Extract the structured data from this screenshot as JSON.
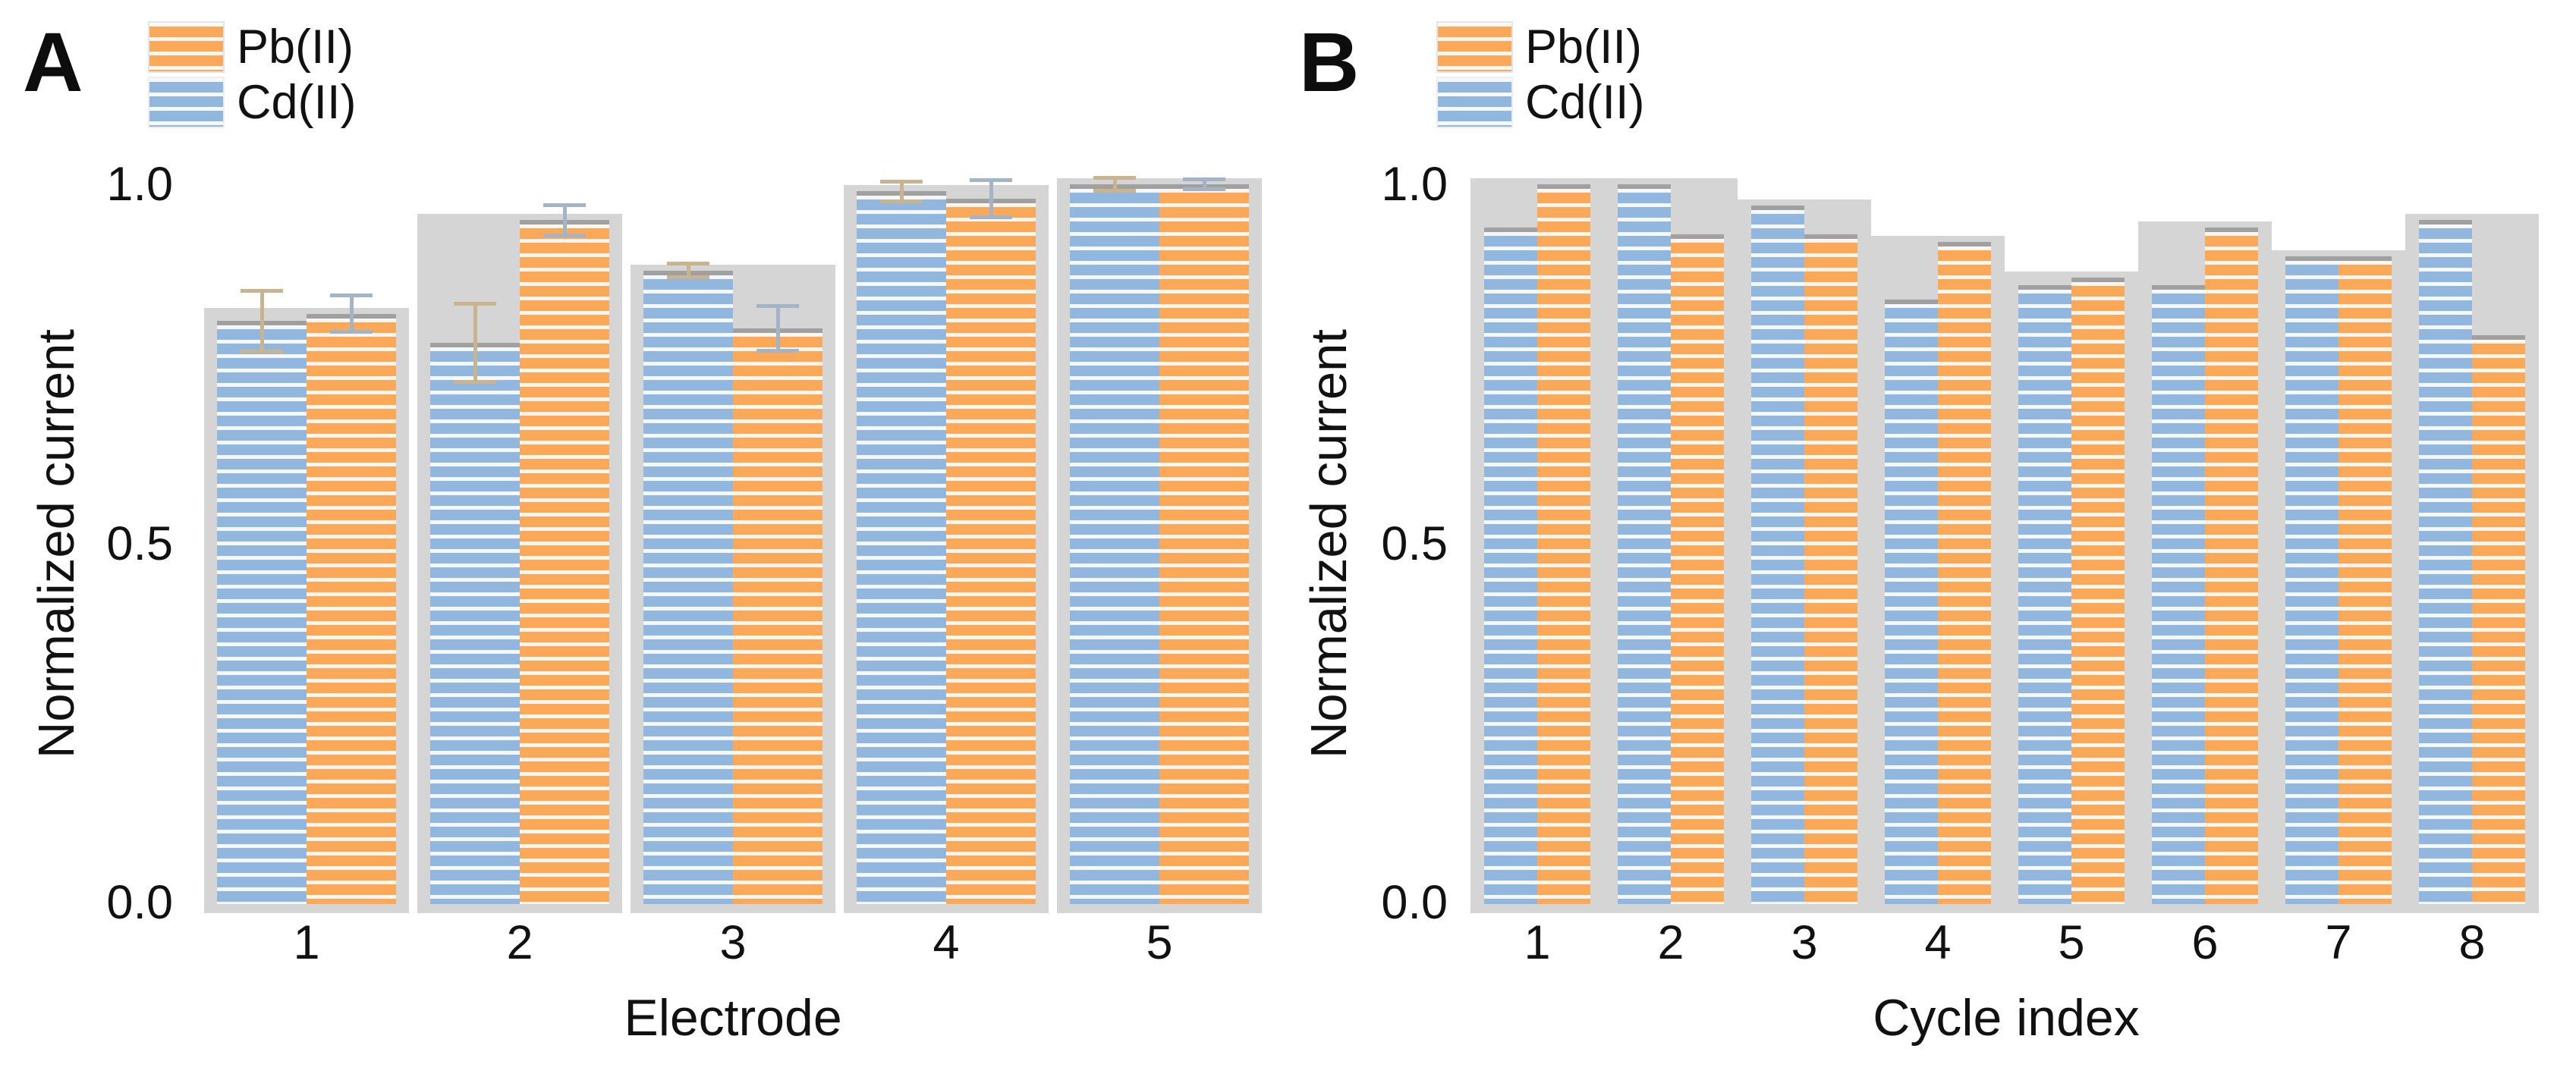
{
  "figure": {
    "description": "Two-panel grouped bar figure comparing normalized current of Pb(II) and Cd(II)",
    "background_color": "#ffffff",
    "series_colors": {
      "pb": "#fba958",
      "cd": "#92b7de"
    },
    "shadow_color": "#d5d5d5",
    "bar_cap_color": "#a0a0a0"
  },
  "chart_data": [
    {
      "type": "bar",
      "panel_label": "A",
      "xlabel": "Electrode",
      "ylabel": "Normalized current",
      "yticks": [
        "1.0",
        "0.5",
        "0.0"
      ],
      "ylim": [
        0.0,
        1.0
      ],
      "grid": false,
      "legend_position": "top-left",
      "bar_pattern": "white-horizontal-stripes",
      "categories": [
        "1",
        "2",
        "3",
        "4",
        "5"
      ],
      "series": [
        {
          "name": "Pb(II)",
          "color": "#fba958",
          "column": "right",
          "values": [
            0.82,
            0.95,
            0.8,
            0.98,
            1.0
          ],
          "errors": [
            0.028,
            0.024,
            0.034,
            0.028,
            0.01
          ]
        },
        {
          "name": "Cd(II)",
          "color": "#92b7de",
          "column": "left",
          "values": [
            0.81,
            0.78,
            0.88,
            0.99,
            1.0
          ],
          "errors": [
            0.045,
            0.057,
            0.012,
            0.016,
            0.012
          ]
        }
      ]
    },
    {
      "type": "bar",
      "panel_label": "B",
      "xlabel": "Cycle index",
      "ylabel": "Normalized current",
      "yticks": [
        "1.0",
        "0.5",
        "0.0"
      ],
      "ylim": [
        0.0,
        1.0
      ],
      "grid": false,
      "legend_position": "top-left",
      "bar_pattern": "white-horizontal-stripes",
      "categories": [
        "1",
        "2",
        "3",
        "4",
        "5",
        "6",
        "7",
        "8"
      ],
      "series": [
        {
          "name": "Pb(II)",
          "color": "#fba958",
          "column": "right",
          "values": [
            1.0,
            0.93,
            0.93,
            0.92,
            0.87,
            0.94,
            0.9,
            0.79
          ],
          "errors": [
            0,
            0,
            0,
            0,
            0,
            0,
            0,
            0
          ]
        },
        {
          "name": "Cd(II)",
          "color": "#92b7de",
          "column": "left",
          "values": [
            0.94,
            1.0,
            0.97,
            0.84,
            0.86,
            0.86,
            0.9,
            0.95
          ],
          "errors": [
            0,
            0,
            0,
            0,
            0,
            0,
            0,
            0
          ]
        }
      ]
    }
  ]
}
